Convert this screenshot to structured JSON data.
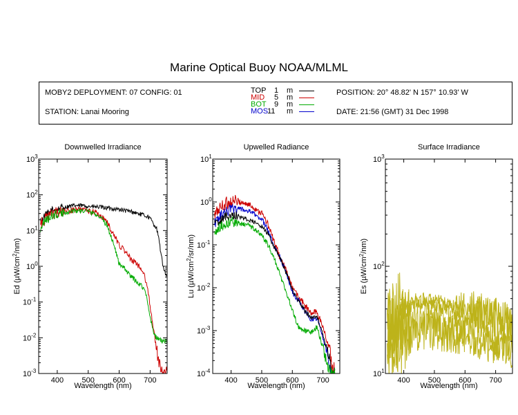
{
  "title": "Marine Optical Buoy NOAA/MLML",
  "info": {
    "deployment": "MOBY2 DEPLOYMENT: 07 CONFIG: 01",
    "station": "STATION: Lanai Mooring",
    "position": "POSITION: 20° 48.82' N   157° 10.93' W",
    "date": "DATE: 21:56 (GMT) 31 Dec 1998",
    "legend": [
      {
        "name": "TOP",
        "depth": "1",
        "unit": "m",
        "color": "#000000"
      },
      {
        "name": "MID",
        "depth": "5",
        "unit": "m",
        "color": "#cc0000"
      },
      {
        "name": "BOT",
        "depth": "9",
        "unit": "m",
        "color": "#00aa00"
      },
      {
        "name": "MOS",
        "depth": "11",
        "unit": "m",
        "color": "#0000cc"
      }
    ]
  },
  "chart_data": [
    {
      "type": "line",
      "title": "Downwelled Irradiance",
      "xlabel": "Wavelength (nm)",
      "ylabel_main": "Ed  (µW/cm",
      "ylabel_sup": "2",
      "ylabel_end": "/nm)",
      "xlim": [
        340,
        755
      ],
      "ylim": [
        0.001,
        1000
      ],
      "yscale": "log",
      "xticks": [
        "400",
        "500",
        "600",
        "700"
      ],
      "xtick_values": [
        400,
        500,
        600,
        700
      ],
      "yticks": [
        {
          "base": "10",
          "exp": "3",
          "value": 1000
        },
        {
          "base": "10",
          "exp": "2",
          "value": 100
        },
        {
          "base": "10",
          "exp": "1",
          "value": 10
        },
        {
          "base": "10",
          "exp": "0",
          "value": 1
        },
        {
          "base": "10",
          "exp": "-1",
          "value": 0.1
        },
        {
          "base": "10",
          "exp": "-2",
          "value": 0.01
        },
        {
          "base": "10",
          "exp": "-3",
          "value": 0.001
        }
      ],
      "series": [
        {
          "color": "#000000",
          "noise": 0.06,
          "x": [
            345,
            360,
            380,
            400,
            420,
            440,
            460,
            480,
            500,
            520,
            540,
            560,
            580,
            600,
            620,
            640,
            660,
            680,
            690,
            700,
            710,
            720,
            725,
            730,
            740,
            750,
            755
          ],
          "y": [
            18,
            25,
            35,
            40,
            44,
            48,
            50,
            50,
            48,
            46,
            45,
            43,
            41,
            39,
            36,
            34,
            30,
            27,
            25,
            22,
            16,
            12,
            8,
            4.5,
            1.2,
            0.6,
            0.55
          ]
        },
        {
          "color": "#cc0000",
          "noise": 0.08,
          "x": [
            345,
            360,
            380,
            400,
            420,
            440,
            460,
            480,
            500,
            520,
            540,
            560,
            580,
            600,
            620,
            640,
            660,
            680,
            690,
            700,
            710,
            720,
            730,
            740,
            750,
            755
          ],
          "y": [
            15,
            20,
            28,
            32,
            34,
            36,
            38,
            38,
            36,
            33,
            26,
            18,
            8,
            4,
            2.5,
            1.5,
            1.1,
            0.6,
            0.3,
            0.08,
            0.02,
            0.005,
            0.002,
            0.001,
            0.001,
            0.001
          ]
        },
        {
          "color": "#00aa00",
          "noise": 0.07,
          "x": [
            345,
            360,
            380,
            400,
            420,
            440,
            460,
            480,
            500,
            520,
            540,
            560,
            580,
            600,
            620,
            640,
            660,
            680,
            690,
            700,
            710,
            720,
            730,
            740,
            750,
            755
          ],
          "y": [
            12,
            18,
            25,
            29,
            31,
            34,
            36,
            36,
            34,
            30,
            24,
            14,
            5,
            1.2,
            0.8,
            0.5,
            0.35,
            0.25,
            0.12,
            0.04,
            0.015,
            0.01,
            0.009,
            0.008,
            0.008,
            0.007
          ]
        }
      ]
    },
    {
      "type": "line",
      "title": "Upwelled Radiance",
      "xlabel": "Wavelength (nm)",
      "ylabel_main": "Lu  (µW/cm",
      "ylabel_sup": "2",
      "ylabel_end": "/sr/nm)",
      "xlim": [
        340,
        755
      ],
      "ylim": [
        0.0001,
        10
      ],
      "yscale": "log",
      "xticks": [
        "400",
        "500",
        "600",
        "700"
      ],
      "xtick_values": [
        400,
        500,
        600,
        700
      ],
      "yticks": [
        {
          "base": "10",
          "exp": "1",
          "value": 10
        },
        {
          "base": "10",
          "exp": "0",
          "value": 1
        },
        {
          "base": "10",
          "exp": "-1",
          "value": 0.1
        },
        {
          "base": "10",
          "exp": "-2",
          "value": 0.01
        },
        {
          "base": "10",
          "exp": "-3",
          "value": 0.001
        },
        {
          "base": "10",
          "exp": "-4",
          "value": 0.0001
        }
      ],
      "series": [
        {
          "color": "#cc0000",
          "noise": 0.08,
          "x": [
            345,
            360,
            380,
            400,
            420,
            440,
            460,
            480,
            500,
            520,
            540,
            560,
            580,
            600,
            620,
            640,
            660,
            680,
            700,
            720,
            730,
            740
          ],
          "y": [
            0.45,
            0.7,
            0.9,
            1.0,
            1.05,
            0.95,
            0.85,
            0.7,
            0.55,
            0.3,
            0.12,
            0.05,
            0.025,
            0.01,
            0.006,
            0.004,
            0.0025,
            0.0028,
            0.0012,
            0.0004,
            0.00015,
            0.0001
          ]
        },
        {
          "color": "#0000cc",
          "noise": 0.06,
          "x": [
            345,
            360,
            380,
            400,
            420,
            440,
            460,
            480,
            500,
            520,
            540,
            560,
            580,
            600,
            620,
            640,
            660,
            680,
            700,
            720,
            730,
            740
          ],
          "y": [
            0.3,
            0.45,
            0.55,
            0.7,
            0.72,
            0.65,
            0.6,
            0.5,
            0.4,
            0.22,
            0.1,
            0.05,
            0.022,
            0.008,
            0.005,
            0.003,
            0.0018,
            0.002,
            0.0007,
            0.0002,
            0.0001,
            0.0001
          ]
        },
        {
          "color": "#000000",
          "noise": 0.05,
          "x": [
            345,
            360,
            380,
            400,
            420,
            440,
            460,
            480,
            500,
            520,
            540,
            560,
            580,
            600,
            620,
            640,
            660,
            680,
            700,
            720,
            730,
            740
          ],
          "y": [
            0.3,
            0.35,
            0.45,
            0.5,
            0.48,
            0.42,
            0.38,
            0.32,
            0.27,
            0.18,
            0.09,
            0.05,
            0.022,
            0.009,
            0.005,
            0.003,
            0.002,
            0.0022,
            0.0008,
            0.00025,
            0.0001,
            0.0001
          ]
        },
        {
          "color": "#00aa00",
          "noise": 0.06,
          "x": [
            345,
            360,
            380,
            400,
            420,
            440,
            460,
            480,
            500,
            520,
            540,
            560,
            580,
            600,
            620,
            640,
            660,
            680,
            700,
            720,
            730,
            740
          ],
          "y": [
            0.2,
            0.25,
            0.3,
            0.35,
            0.33,
            0.3,
            0.28,
            0.22,
            0.17,
            0.1,
            0.05,
            0.02,
            0.008,
            0.003,
            0.0012,
            0.001,
            0.0009,
            0.0012,
            0.0004,
            0.00012,
            0.0001,
            0.0001
          ]
        }
      ]
    },
    {
      "type": "line",
      "title": "Surface Irradiance",
      "xlabel": "Wavelength (nm)",
      "ylabel_main": "Es  (µW/cm",
      "ylabel_sup": "2",
      "ylabel_end": "/nm)",
      "xlim": [
        340,
        755
      ],
      "ylim": [
        10,
        1000
      ],
      "yscale": "log",
      "xticks": [
        "400",
        "500",
        "600",
        "700"
      ],
      "xtick_values": [
        400,
        500,
        600,
        700
      ],
      "yticks": [
        {
          "base": "10",
          "exp": "3",
          "value": 1000
        },
        {
          "base": "10",
          "exp": "2",
          "value": 100
        },
        {
          "base": "10",
          "exp": "1",
          "value": 10
        }
      ],
      "series": [
        {
          "color": "#bdb31a",
          "noise": 0.07,
          "x": [
            345,
            360,
            380,
            400,
            420,
            440,
            460,
            480,
            500,
            520,
            540,
            560,
            580,
            600,
            620,
            640,
            660,
            680,
            700,
            720,
            740,
            755
          ],
          "y": [
            28,
            34,
            38,
            42,
            45,
            48,
            49,
            48,
            47,
            46,
            44,
            43,
            42,
            41,
            40,
            38,
            37,
            36,
            34,
            33,
            30,
            28
          ]
        },
        {
          "color": "#bdb31a",
          "noise": 0.07,
          "x": [
            345,
            360,
            380,
            400,
            420,
            440,
            460,
            480,
            500,
            520,
            540,
            560,
            580,
            600,
            620,
            640,
            660,
            680,
            700,
            720,
            740,
            755
          ],
          "y": [
            26,
            31,
            35,
            39,
            42,
            45,
            46,
            45,
            44,
            43,
            41,
            40,
            39,
            38,
            37,
            36,
            35,
            34,
            32,
            31,
            28,
            26
          ]
        },
        {
          "color": "#bdb31a",
          "noise": 0.07,
          "x": [
            345,
            360,
            380,
            400,
            420,
            440,
            460,
            480,
            500,
            520,
            540,
            560,
            580,
            600,
            620,
            640,
            660,
            680,
            700,
            720,
            740,
            755
          ],
          "y": [
            19,
            22,
            25,
            28,
            30,
            32,
            33,
            33,
            32,
            31,
            30,
            29,
            28,
            28,
            27,
            26,
            25,
            24,
            23,
            22,
            20,
            19
          ]
        },
        {
          "color": "#bdb31a",
          "noise": 0.07,
          "x": [
            345,
            360,
            380,
            400,
            420,
            440,
            460,
            480,
            500,
            520,
            540,
            560,
            580,
            600,
            620,
            640,
            660,
            680,
            700,
            720,
            740,
            755
          ],
          "y": [
            15,
            17,
            19,
            21,
            23,
            24,
            25,
            25,
            24,
            24,
            23,
            22,
            22,
            21,
            21,
            20,
            20,
            19,
            18,
            17,
            16,
            15
          ]
        }
      ]
    }
  ]
}
